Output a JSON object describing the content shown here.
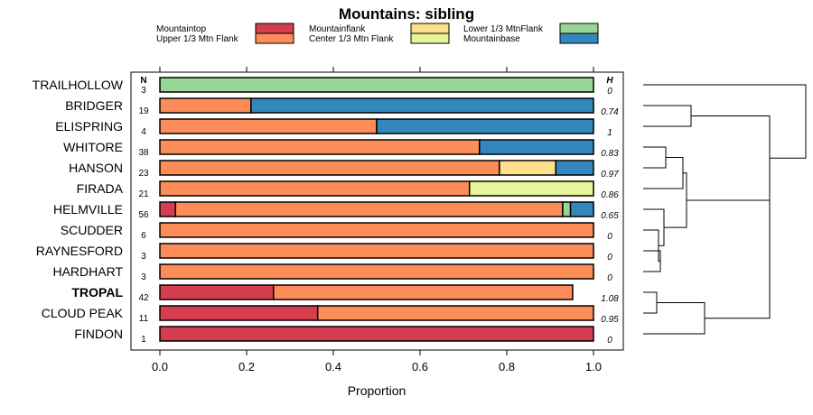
{
  "chart_data": {
    "type": "bar",
    "stacked": true,
    "orientation": "horizontal",
    "title": "Mountains: sibling",
    "xlabel": "Proportion",
    "xlim": [
      0,
      1
    ],
    "xticks": [
      "0.0",
      "0.2",
      "0.4",
      "0.6",
      "0.8",
      "1.0"
    ],
    "n_header": "N",
    "h_header": "H",
    "legend": [
      {
        "name": "Mountaintop",
        "color": "#d53e4f"
      },
      {
        "name": "Upper 1/3 Mtn Flank",
        "color": "#fc8d59"
      },
      {
        "name": "Mountainflank",
        "color": "#fee08b"
      },
      {
        "name": "Center 1/3 Mtn Flank",
        "color": "#e6f598"
      },
      {
        "name": "Lower 1/3 MtnFlank",
        "color": "#99d594"
      },
      {
        "name": "Mountainbase",
        "color": "#3288bd"
      }
    ],
    "categories": [
      "TRAILHOLLOW",
      "BRIDGER",
      "ELISPRING",
      "WHITORE",
      "HANSON",
      "FIRADA",
      "HELMVILLE",
      "SCUDDER",
      "RAYNESFORD",
      "HARDHART",
      "TROPAL",
      "CLOUD PEAK",
      "FINDON"
    ],
    "highlight": "TROPAL",
    "N": [
      "3",
      "19",
      "4",
      "38",
      "23",
      "21",
      "56",
      "6",
      "3",
      "3",
      "42",
      "11",
      "1"
    ],
    "H": [
      "0",
      "0.74",
      "1",
      "0.83",
      "0.97",
      "0.86",
      "0.65",
      "0",
      "0",
      "0",
      "1.08",
      "0.95",
      "0"
    ],
    "series": [
      {
        "name": "Mountaintop",
        "values": [
          0,
          0,
          0,
          0,
          0,
          0,
          0.036,
          0,
          0,
          0,
          0.262,
          0.364,
          1
        ]
      },
      {
        "name": "Upper 1/3 Mtn Flank",
        "values": [
          0,
          0.21,
          0.5,
          0.737,
          0.783,
          0.714,
          0.893,
          1,
          1,
          1,
          0.69,
          0.636,
          0
        ]
      },
      {
        "name": "Mountainflank",
        "values": [
          0,
          0,
          0,
          0,
          0.13,
          0,
          0,
          0,
          0,
          0,
          0,
          0,
          0
        ]
      },
      {
        "name": "Center 1/3 Mtn Flank",
        "values": [
          0,
          0,
          0,
          0,
          0,
          0.286,
          0,
          0,
          0,
          0,
          0,
          0,
          0
        ]
      },
      {
        "name": "Lower 1/3 MtnFlank",
        "values": [
          1,
          0,
          0,
          0,
          0,
          0,
          0.018,
          0,
          0,
          0,
          0,
          0,
          0
        ]
      },
      {
        "name": "Mountainbase",
        "values": [
          0,
          0.79,
          0.5,
          0.263,
          0.087,
          0,
          0.053,
          0,
          0,
          0,
          0,
          0,
          0
        ]
      }
    ],
    "dendrogram": "hierarchical clustering of the 13 rows (right side)"
  }
}
